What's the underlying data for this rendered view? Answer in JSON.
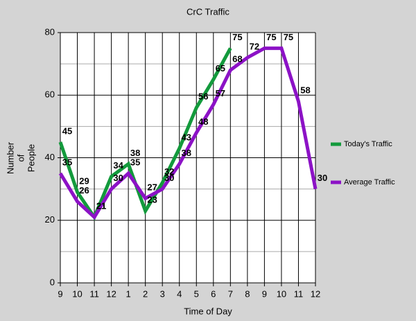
{
  "chart_data": {
    "type": "line",
    "title": "CrC Traffic",
    "xlabel": "Time of Day",
    "ylabel": [
      "Number",
      "of",
      "People"
    ],
    "categories": [
      "9",
      "10",
      "11",
      "12",
      "1",
      "2",
      "3",
      "4",
      "5",
      "6",
      "7",
      "8",
      "9",
      "10",
      "11",
      "12"
    ],
    "series": [
      {
        "name": "Today's Traffic",
        "color": "#139a3c",
        "values": [
          45,
          29,
          21,
          34,
          38,
          23,
          32,
          43,
          56,
          65,
          75,
          null,
          null,
          null,
          null,
          null
        ]
      },
      {
        "name": "Average Traffic",
        "color": "#8c12c6",
        "values": [
          35,
          26,
          21,
          30,
          35,
          27,
          30,
          38,
          48,
          57,
          68,
          72,
          75,
          75,
          58,
          30
        ]
      }
    ],
    "ylim": [
      0,
      80
    ],
    "yticks": [
      0,
      20,
      40,
      60,
      80
    ],
    "yminorticks": [
      10,
      30,
      50,
      70
    ],
    "grid": true,
    "legend": "right"
  }
}
